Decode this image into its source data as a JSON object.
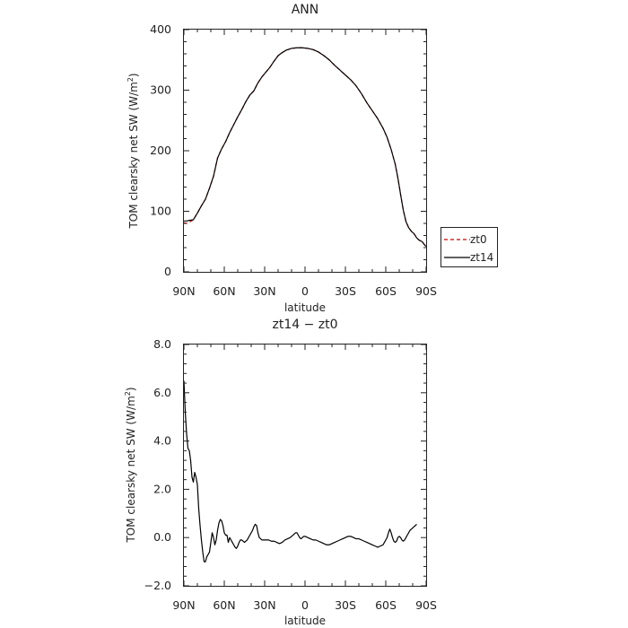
{
  "chart_data": [
    {
      "type": "line",
      "title": "ANN",
      "xlabel": "latitude",
      "ylabel": "TOM clearsky net SW (W/m",
      "ylabel_superscript": "2",
      "ylabel_close": ")",
      "x_direction": "90N to 90S",
      "xlim": [
        90,
        -90
      ],
      "ylim": [
        0,
        400
      ],
      "xticks": [
        {
          "value": 90,
          "label": "90N"
        },
        {
          "value": 60,
          "label": "60N"
        },
        {
          "value": 30,
          "label": "30N"
        },
        {
          "value": 0,
          "label": "0"
        },
        {
          "value": -30,
          "label": "30S"
        },
        {
          "value": -60,
          "label": "60S"
        },
        {
          "value": -90,
          "label": "90S"
        }
      ],
      "yticks": [
        {
          "value": 0,
          "label": "0"
        },
        {
          "value": 100,
          "label": "100"
        },
        {
          "value": 200,
          "label": "200"
        },
        {
          "value": 300,
          "label": "300"
        },
        {
          "value": 400,
          "label": "400"
        }
      ],
      "grid": false,
      "legend_position": "outside right",
      "series": [
        {
          "name": "zt0",
          "color": "#cc0000",
          "dash": "dashed",
          "points": [
            [
              90,
              81
            ],
            [
              88,
              80
            ],
            [
              86,
              82
            ],
            [
              83,
              86
            ],
            [
              80,
              97
            ],
            [
              77,
              109
            ],
            [
              74,
              120
            ],
            [
              71,
              138
            ],
            [
              68,
              158
            ],
            [
              65,
              188
            ],
            [
              62,
              203
            ],
            [
              59,
              215
            ],
            [
              56,
              230
            ],
            [
              53,
              243
            ],
            [
              50,
              256
            ],
            [
              47,
              268
            ],
            [
              44,
              281
            ],
            [
              41,
              292
            ],
            [
              38,
              299
            ],
            [
              35,
              312
            ],
            [
              32,
              322
            ],
            [
              29,
              330
            ],
            [
              26,
              338
            ],
            [
              23,
              348
            ],
            [
              20,
              357
            ],
            [
              17,
              362
            ],
            [
              14,
              366
            ],
            [
              10,
              369
            ],
            [
              6,
              370
            ],
            [
              2,
              370
            ],
            [
              -2,
              369
            ],
            [
              -6,
              367
            ],
            [
              -10,
              363
            ],
            [
              -14,
              357
            ],
            [
              -18,
              350
            ],
            [
              -22,
              341
            ],
            [
              -26,
              333
            ],
            [
              -30,
              325
            ],
            [
              -34,
              317
            ],
            [
              -38,
              307
            ],
            [
              -42,
              294
            ],
            [
              -46,
              279
            ],
            [
              -50,
              266
            ],
            [
              -54,
              253
            ],
            [
              -58,
              237
            ],
            [
              -61,
              222
            ],
            [
              -64,
              202
            ],
            [
              -67,
              178
            ],
            [
              -69,
              155
            ],
            [
              -71,
              128
            ],
            [
              -73,
              102
            ],
            [
              -75,
              83
            ],
            [
              -77,
              73
            ],
            [
              -79,
              67
            ],
            [
              -81,
              63
            ],
            [
              -83,
              56
            ],
            [
              -85,
              52
            ],
            [
              -87,
              50
            ],
            [
              -89,
              44
            ],
            [
              -90,
              42
            ]
          ]
        },
        {
          "name": "zt14",
          "color": "#000000",
          "dash": "solid",
          "points": [
            [
              90,
              84
            ],
            [
              88,
              84
            ],
            [
              86,
              85
            ],
            [
              83,
              86
            ],
            [
              80,
              97
            ],
            [
              77,
              109
            ],
            [
              74,
              120
            ],
            [
              71,
              138
            ],
            [
              68,
              158
            ],
            [
              65,
              188
            ],
            [
              62,
              203
            ],
            [
              59,
              215
            ],
            [
              56,
              230
            ],
            [
              53,
              243
            ],
            [
              50,
              256
            ],
            [
              47,
              268
            ],
            [
              44,
              281
            ],
            [
              41,
              292
            ],
            [
              38,
              299
            ],
            [
              35,
              312
            ],
            [
              32,
              322
            ],
            [
              29,
              330
            ],
            [
              26,
              338
            ],
            [
              23,
              348
            ],
            [
              20,
              357
            ],
            [
              17,
              362
            ],
            [
              14,
              366
            ],
            [
              10,
              369
            ],
            [
              6,
              370
            ],
            [
              2,
              370
            ],
            [
              -2,
              369
            ],
            [
              -6,
              367
            ],
            [
              -10,
              363
            ],
            [
              -14,
              357
            ],
            [
              -18,
              350
            ],
            [
              -22,
              341
            ],
            [
              -26,
              333
            ],
            [
              -30,
              325
            ],
            [
              -34,
              317
            ],
            [
              -38,
              307
            ],
            [
              -42,
              294
            ],
            [
              -46,
              279
            ],
            [
              -50,
              266
            ],
            [
              -54,
              253
            ],
            [
              -58,
              237
            ],
            [
              -61,
              222
            ],
            [
              -64,
              202
            ],
            [
              -67,
              178
            ],
            [
              -69,
              155
            ],
            [
              -71,
              128
            ],
            [
              -73,
              102
            ],
            [
              -75,
              83
            ],
            [
              -77,
              73
            ],
            [
              -79,
              67
            ],
            [
              -81,
              63
            ],
            [
              -83,
              56
            ],
            [
              -85,
              52
            ],
            [
              -87,
              50
            ],
            [
              -89,
              44
            ],
            [
              -90,
              42
            ]
          ]
        }
      ]
    },
    {
      "type": "line",
      "title": "zt14 − zt0",
      "xlabel": "latitude",
      "ylabel": "TOM clearsky net SW (W/m",
      "ylabel_superscript": "2",
      "ylabel_close": ")",
      "x_direction": "90N to 90S",
      "xlim": [
        90,
        -90
      ],
      "ylim": [
        -2,
        8
      ],
      "xticks": [
        {
          "value": 90,
          "label": "90N"
        },
        {
          "value": 60,
          "label": "60N"
        },
        {
          "value": 30,
          "label": "30N"
        },
        {
          "value": 0,
          "label": "0"
        },
        {
          "value": -30,
          "label": "30S"
        },
        {
          "value": -60,
          "label": "60S"
        },
        {
          "value": -90,
          "label": "90S"
        }
      ],
      "yticks": [
        {
          "value": -2,
          "label": "−2.0"
        },
        {
          "value": 0,
          "label": "0.0"
        },
        {
          "value": 2,
          "label": "2.0"
        },
        {
          "value": 4,
          "label": "4.0"
        },
        {
          "value": 6,
          "label": "6.0"
        },
        {
          "value": 8,
          "label": "8.0"
        }
      ],
      "grid": false,
      "series": [
        {
          "name": "",
          "color": "#000000",
          "dash": "solid",
          "points": [
            [
              90,
              6.5
            ],
            [
              89,
              5.2
            ],
            [
              88,
              4.3
            ],
            [
              87,
              3.7
            ],
            [
              86,
              3.6
            ],
            [
              85,
              3.2
            ],
            [
              84,
              2.5
            ],
            [
              83,
              2.3
            ],
            [
              82,
              2.7
            ],
            [
              81,
              2.5
            ],
            [
              80,
              2.2
            ],
            [
              79,
              1.2
            ],
            [
              78,
              0.5
            ],
            [
              77,
              -0.1
            ],
            [
              76,
              -0.6
            ],
            [
              75,
              -1.0
            ],
            [
              74,
              -1.0
            ],
            [
              73,
              -0.8
            ],
            [
              72,
              -0.7
            ],
            [
              71,
              -0.6
            ],
            [
              70,
              -0.2
            ],
            [
              69,
              0.2
            ],
            [
              68,
              0.0
            ],
            [
              67,
              -0.3
            ],
            [
              66,
              -0.1
            ],
            [
              65,
              0.3
            ],
            [
              64,
              0.6
            ],
            [
              63,
              0.75
            ],
            [
              62,
              0.7
            ],
            [
              61,
              0.5
            ],
            [
              60,
              0.2
            ],
            [
              59,
              0.1
            ],
            [
              58,
              0.1
            ],
            [
              57,
              -0.2
            ],
            [
              56,
              0.0
            ],
            [
              55,
              -0.1
            ],
            [
              54,
              -0.2
            ],
            [
              53,
              -0.3
            ],
            [
              52,
              -0.4
            ],
            [
              51,
              -0.45
            ],
            [
              50,
              -0.35
            ],
            [
              49,
              -0.2
            ],
            [
              48,
              -0.1
            ],
            [
              47,
              -0.1
            ],
            [
              46,
              -0.15
            ],
            [
              45,
              -0.2
            ],
            [
              44,
              -0.15
            ],
            [
              43,
              -0.1
            ],
            [
              42,
              0.0
            ],
            [
              41,
              0.1
            ],
            [
              40,
              0.2
            ],
            [
              39,
              0.3
            ],
            [
              38,
              0.45
            ],
            [
              37,
              0.55
            ],
            [
              36,
              0.5
            ],
            [
              35,
              0.2
            ],
            [
              34,
              0.0
            ],
            [
              33,
              -0.05
            ],
            [
              32,
              -0.1
            ],
            [
              31,
              -0.1
            ],
            [
              29,
              -0.1
            ],
            [
              27,
              -0.1
            ],
            [
              25,
              -0.15
            ],
            [
              23,
              -0.15
            ],
            [
              21,
              -0.2
            ],
            [
              19,
              -0.25
            ],
            [
              17,
              -0.2
            ],
            [
              15,
              -0.1
            ],
            [
              13,
              -0.05
            ],
            [
              11,
              0.0
            ],
            [
              9,
              0.1
            ],
            [
              7,
              0.2
            ],
            [
              6,
              0.2
            ],
            [
              5,
              0.1
            ],
            [
              4,
              0.0
            ],
            [
              3,
              -0.05
            ],
            [
              2,
              0.0
            ],
            [
              1,
              0.05
            ],
            [
              0,
              0.05
            ],
            [
              -2,
              0.0
            ],
            [
              -4,
              -0.05
            ],
            [
              -6,
              -0.1
            ],
            [
              -8,
              -0.1
            ],
            [
              -10,
              -0.15
            ],
            [
              -12,
              -0.2
            ],
            [
              -14,
              -0.25
            ],
            [
              -16,
              -0.3
            ],
            [
              -18,
              -0.3
            ],
            [
              -20,
              -0.25
            ],
            [
              -22,
              -0.2
            ],
            [
              -24,
              -0.15
            ],
            [
              -26,
              -0.1
            ],
            [
              -28,
              -0.05
            ],
            [
              -30,
              0.0
            ],
            [
              -32,
              0.05
            ],
            [
              -34,
              0.05
            ],
            [
              -36,
              0.0
            ],
            [
              -38,
              -0.05
            ],
            [
              -40,
              -0.05
            ],
            [
              -42,
              -0.1
            ],
            [
              -44,
              -0.15
            ],
            [
              -46,
              -0.2
            ],
            [
              -48,
              -0.25
            ],
            [
              -50,
              -0.3
            ],
            [
              -52,
              -0.35
            ],
            [
              -54,
              -0.4
            ],
            [
              -56,
              -0.35
            ],
            [
              -58,
              -0.3
            ],
            [
              -59,
              -0.2
            ],
            [
              -60,
              -0.1
            ],
            [
              -61,
              0.0
            ],
            [
              -62,
              0.2
            ],
            [
              -63,
              0.35
            ],
            [
              -64,
              0.2
            ],
            [
              -65,
              0.0
            ],
            [
              -66,
              -0.15
            ],
            [
              -67,
              -0.2
            ],
            [
              -68,
              -0.15
            ],
            [
              -69,
              0.0
            ],
            [
              -70,
              0.05
            ],
            [
              -71,
              0.0
            ],
            [
              -72,
              -0.1
            ],
            [
              -73,
              -0.15
            ],
            [
              -74,
              -0.1
            ],
            [
              -75,
              0.0
            ],
            [
              -76,
              0.1
            ],
            [
              -77,
              0.2
            ],
            [
              -78,
              0.3
            ],
            [
              -79,
              0.35
            ],
            [
              -80,
              0.4
            ],
            [
              -81,
              0.45
            ],
            [
              -82,
              0.5
            ],
            [
              -83,
              0.55
            ]
          ]
        }
      ]
    }
  ]
}
